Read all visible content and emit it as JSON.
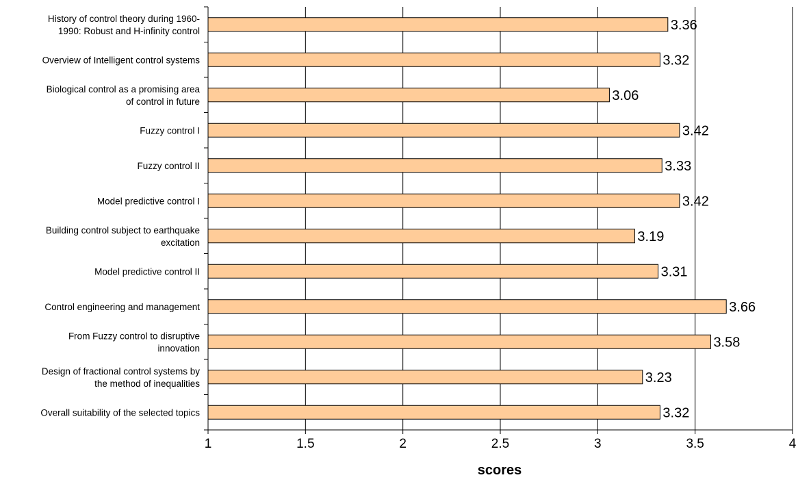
{
  "chart_data": {
    "type": "bar",
    "orientation": "horizontal",
    "categories": [
      [
        "History of control theory during 1960-",
        "1990: Robust and H-infinity control"
      ],
      [
        "Overview of Intelligent control systems"
      ],
      [
        "Biological control as a promising area",
        "of control in future"
      ],
      [
        "Fuzzy control I"
      ],
      [
        "Fuzzy control II"
      ],
      [
        "Model predictive control I"
      ],
      [
        "Building control subject to earthquake",
        "excitation"
      ],
      [
        "Model predictive control II"
      ],
      [
        "Control engineering and management"
      ],
      [
        "From Fuzzy control to disruptive",
        "innovation"
      ],
      [
        "Design of fractional control systems by",
        "the method of inequalities"
      ],
      [
        "Overall suitability of the selected topics"
      ]
    ],
    "values": [
      3.36,
      3.32,
      3.06,
      3.42,
      3.33,
      3.42,
      3.19,
      3.31,
      3.66,
      3.58,
      3.23,
      3.32
    ],
    "value_labels": [
      "3.36",
      "3.32",
      "3.06",
      "3.42",
      "3.33",
      "3.42",
      "3.19",
      "3.31",
      "3.66",
      "3.58",
      "3.23",
      "3.32"
    ],
    "xlabel": "scores",
    "ylabel": "",
    "title": "",
    "xlim": [
      1,
      4
    ],
    "xticks": [
      1,
      1.5,
      2,
      2.5,
      3,
      3.5,
      4
    ],
    "xtick_labels": [
      "1",
      "1.5",
      "2",
      "2.5",
      "3",
      "3.5",
      "4"
    ],
    "grid": "vertical",
    "legend": "none",
    "colors": {
      "bar_fill": "#FFCC99",
      "bar_stroke": "#000000",
      "grid": "#000000"
    }
  }
}
